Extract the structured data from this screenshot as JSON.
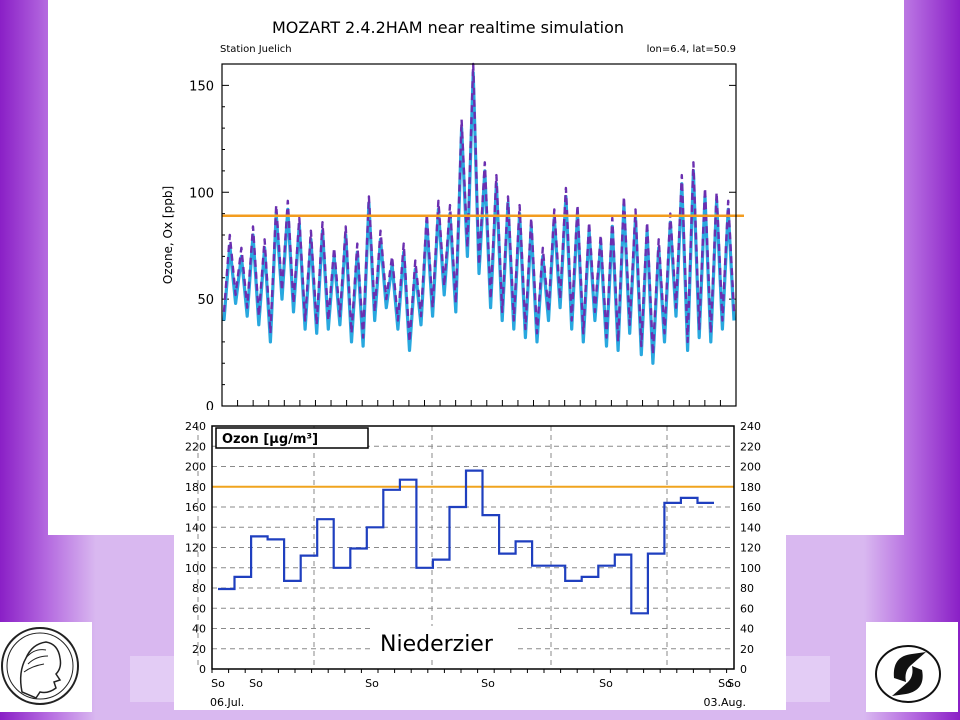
{
  "chart_data": [
    {
      "type": "line",
      "title": "MOZART 2.4.2HAM near realtime simulation",
      "subtitle_left": "Station Juelich",
      "subtitle_right": "lon=6.4, lat=50.9",
      "ylabel": "Ozone, Ox [ppb]",
      "xlabel": "",
      "ylim": [
        0,
        160
      ],
      "yticks": [
        0,
        50,
        100,
        150
      ],
      "reference_line": 89,
      "series": [
        {
          "color": "#29a8df",
          "style": "solid",
          "values": [
            40,
            75,
            48,
            70,
            42,
            80,
            38,
            74,
            30,
            90,
            50,
            92,
            44,
            85,
            36,
            78,
            34,
            82,
            36,
            70,
            38,
            80,
            30,
            72,
            28,
            95,
            40,
            78,
            46,
            66,
            36,
            72,
            26,
            64,
            38,
            86,
            42,
            92,
            52,
            90,
            44,
            130,
            70,
            156,
            62,
            110,
            46,
            104,
            40,
            95,
            36,
            90,
            32,
            84,
            30,
            70,
            40,
            88,
            46,
            98,
            36,
            90,
            30,
            82,
            40,
            76,
            28,
            84,
            26,
            94,
            34,
            88,
            24,
            82,
            20,
            74,
            30,
            86,
            42,
            104,
            26,
            110,
            32,
            98,
            30,
            96,
            36,
            92,
            40
          ]
        },
        {
          "color": "#6b2fb0",
          "style": "dashed",
          "values": [
            44,
            80,
            52,
            74,
            46,
            84,
            42,
            78,
            34,
            94,
            54,
            96,
            48,
            88,
            40,
            82,
            38,
            86,
            40,
            74,
            42,
            84,
            34,
            76,
            32,
            98,
            44,
            82,
            50,
            70,
            40,
            76,
            30,
            68,
            42,
            90,
            46,
            96,
            56,
            94,
            48,
            134,
            74,
            160,
            66,
            114,
            50,
            108,
            44,
            98,
            40,
            94,
            36,
            88,
            34,
            74,
            44,
            92,
            50,
            102,
            40,
            94,
            34,
            86,
            44,
            80,
            32,
            88,
            30,
            98,
            38,
            92,
            28,
            86,
            24,
            78,
            34,
            90,
            46,
            108,
            30,
            114,
            36,
            102,
            34,
            100,
            40,
            96,
            44
          ]
        }
      ]
    },
    {
      "type": "line",
      "title": "Ozon [µg/m³]",
      "ylim": [
        0,
        240
      ],
      "yticks": [
        0,
        20,
        40,
        60,
        80,
        100,
        120,
        140,
        160,
        180,
        200,
        220,
        240
      ],
      "xtick_labels": [
        "So",
        "So",
        "So",
        "So",
        "So",
        "So",
        "So"
      ],
      "xdate_labels": [
        "06.Jul.",
        "03.Aug."
      ],
      "reference_line": 180,
      "annotation": "Niederzier",
      "series": [
        {
          "color": "#1f3fbf",
          "style": "step",
          "values": [
            79,
            91,
            131,
            128,
            87,
            112,
            148,
            100,
            119,
            140,
            177,
            187,
            100,
            108,
            160,
            196,
            152,
            114,
            126,
            102,
            102,
            87,
            91,
            102,
            113,
            55,
            114,
            164,
            169,
            164
          ]
        }
      ]
    }
  ]
}
